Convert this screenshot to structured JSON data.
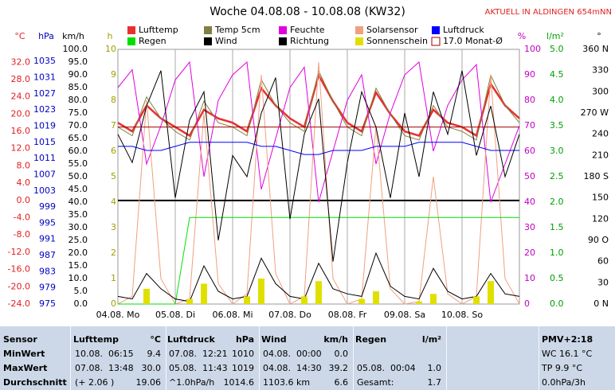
{
  "chart_data": {
    "type": "line",
    "title": "Woche 04.08.08 - 10.08.08 (KW32)",
    "annotation": "AKTUELL IN ALDINGEN 654mNN",
    "x": [
      0,
      6,
      12,
      18,
      24,
      30,
      36,
      42,
      48,
      54,
      60,
      66,
      72,
      78,
      84,
      90,
      96,
      102,
      108,
      114,
      120,
      126,
      132,
      138,
      144,
      150,
      156,
      162,
      168
    ],
    "xlim": [
      0,
      168
    ],
    "xticks": [
      {
        "value": 0,
        "label": "04.08.  Mo"
      },
      {
        "value": 24,
        "label": "05.08.  Di"
      },
      {
        "value": 48,
        "label": "06.08.  Mi"
      },
      {
        "value": 72,
        "label": "07.08.  Do"
      },
      {
        "value": 96,
        "label": "08.08.  Fr"
      },
      {
        "value": 120,
        "label": "09.08.  Sa"
      },
      {
        "value": 144,
        "label": "10.08.  So"
      }
    ],
    "grid": true,
    "axes": [
      {
        "label": "°C",
        "color": "#e02020",
        "ylim": [
          -24,
          35
        ],
        "yticks": [
          {
            "value": 32,
            "label": "32.0"
          },
          {
            "value": 28,
            "label": "28.0"
          },
          {
            "value": 24,
            "label": "24.0"
          },
          {
            "value": 20,
            "label": "20.0"
          },
          {
            "value": 16,
            "label": "16.0"
          },
          {
            "value": 12,
            "label": "12.0"
          },
          {
            "value": 8,
            "label": "8.0"
          },
          {
            "value": 4,
            "label": "4.0"
          },
          {
            "value": 0,
            "label": "0.0"
          },
          {
            "value": -4,
            "label": "-4.0"
          },
          {
            "value": -8,
            "label": "-8.0"
          },
          {
            "value": -12,
            "label": "-12.0"
          },
          {
            "value": -16,
            "label": "-16.0"
          },
          {
            "value": -20,
            "label": "-20.0"
          },
          {
            "value": -24,
            "label": "-24.0"
          }
        ]
      },
      {
        "label": "hPa",
        "color": "#0000c0",
        "ylim": [
          975,
          1038
        ],
        "yticks": [
          1035,
          1031,
          1027,
          1023,
          1019,
          1015,
          1011,
          1007,
          1003,
          999,
          995,
          991,
          987,
          983,
          979,
          975
        ]
      },
      {
        "label": "km/h",
        "color": "#000000",
        "ylim": [
          0,
          100
        ],
        "yticks": [
          {
            "value": 100,
            "label": "100.0"
          },
          {
            "value": 95,
            "label": "95.0"
          },
          {
            "value": 90,
            "label": "90.0"
          },
          {
            "value": 85,
            "label": "85.0"
          },
          {
            "value": 80,
            "label": "80.0"
          },
          {
            "value": 75,
            "label": "75.0"
          },
          {
            "value": 70,
            "label": "70.0"
          },
          {
            "value": 65,
            "label": "65.0"
          },
          {
            "value": 60,
            "label": "60.0"
          },
          {
            "value": 55,
            "label": "55.0"
          },
          {
            "value": 50,
            "label": "50.0"
          },
          {
            "value": 45,
            "label": "45.0"
          },
          {
            "value": 40,
            "label": "40.0"
          },
          {
            "value": 35,
            "label": "35.0"
          },
          {
            "value": 30,
            "label": "30.0"
          },
          {
            "value": 25,
            "label": "25.0"
          },
          {
            "value": 20,
            "label": "20.0"
          },
          {
            "value": 15,
            "label": "15.0"
          },
          {
            "value": 10,
            "label": "10.0"
          },
          {
            "value": 5,
            "label": "5.0"
          },
          {
            "value": 0,
            "label": "0.0"
          }
        ]
      },
      {
        "label": "h",
        "color": "#a0a000",
        "ylim": [
          0,
          10
        ],
        "yticks": [
          10,
          9,
          8,
          7,
          6,
          5,
          4,
          3,
          2,
          1,
          0
        ]
      },
      {
        "label": "%",
        "color": "#c000c0",
        "ylim": [
          0,
          100
        ],
        "yticks": [
          100,
          90,
          80,
          70,
          60,
          50,
          40,
          30,
          20,
          10,
          0
        ]
      },
      {
        "label": "l/m²",
        "color": "#00a000",
        "ylim": [
          0,
          5
        ],
        "yticks": [
          {
            "value": 5,
            "label": "5.0"
          },
          {
            "value": 4.5,
            "label": "4.5"
          },
          {
            "value": 4,
            "label": "4.0"
          },
          {
            "value": 3.5,
            "label": "3.5"
          },
          {
            "value": 3,
            "label": "3.0"
          },
          {
            "value": 2.5,
            "label": "2.5"
          },
          {
            "value": 2,
            "label": "2.0"
          },
          {
            "value": 1.5,
            "label": "1.5"
          },
          {
            "value": 1,
            "label": "1.0"
          },
          {
            "value": 0.5,
            "label": "0.5"
          },
          {
            "value": 0,
            "label": "0.0"
          }
        ]
      },
      {
        "label": "°",
        "color": "#000000",
        "ylim": [
          0,
          360
        ],
        "yticks": [
          {
            "value": 360,
            "label": "360 N"
          },
          330,
          300,
          {
            "value": 270,
            "label": "270 W"
          },
          240,
          210,
          {
            "value": 180,
            "label": "180 S"
          },
          150,
          120,
          {
            "value": 90,
            "label": "90 O"
          },
          60,
          30,
          {
            "value": 0,
            "label": "0 N"
          }
        ]
      }
    ],
    "series": [
      {
        "name": "Lufttemp",
        "color": "#e83030",
        "axis": "°C",
        "values": [
          18,
          16,
          22,
          19,
          17,
          15,
          21,
          19,
          18,
          16,
          26,
          22,
          19,
          17,
          29,
          23,
          18,
          16,
          25,
          20,
          16,
          15,
          21,
          18,
          17,
          15,
          27,
          22,
          19
        ]
      },
      {
        "name": "Temp 5cm",
        "color": "#808040",
        "axis": "°C",
        "values": [
          17,
          15,
          24,
          19,
          16,
          14,
          23,
          18,
          17,
          15,
          28,
          22,
          18,
          16,
          30,
          23,
          17,
          15,
          26,
          20,
          15,
          14,
          22,
          17,
          16,
          14,
          29,
          22,
          18
        ]
      },
      {
        "name": "Feuchte",
        "color": "#e000e0",
        "axis": "%",
        "values": [
          85,
          92,
          55,
          70,
          88,
          95,
          50,
          80,
          90,
          95,
          45,
          65,
          85,
          93,
          40,
          60,
          80,
          90,
          55,
          75,
          90,
          95,
          60,
          78,
          88,
          94,
          40,
          55,
          70
        ]
      },
      {
        "name": "Solarsensor",
        "color": "#f0a080",
        "axis": "%",
        "values": [
          0,
          3,
          80,
          10,
          0,
          2,
          75,
          8,
          0,
          4,
          90,
          12,
          0,
          3,
          95,
          10,
          0,
          2,
          70,
          6,
          0,
          1,
          50,
          4,
          0,
          3,
          90,
          10,
          0
        ]
      },
      {
        "name": "Luftdruck",
        "color": "#0000ff",
        "axis": "hPa",
        "values": [
          1014,
          1014,
          1013,
          1013,
          1014,
          1015,
          1015,
          1015,
          1015,
          1015,
          1014,
          1014,
          1013,
          1012,
          1012,
          1013,
          1013,
          1013,
          1014,
          1014,
          1014,
          1015,
          1015,
          1015,
          1015,
          1014,
          1013,
          1013,
          1013
        ]
      },
      {
        "name": "Regen",
        "color": "#00e000",
        "axis": "l/m²",
        "values": [
          0,
          0,
          0,
          0,
          0,
          1.7,
          1.7,
          1.7,
          1.7,
          1.7,
          1.7,
          1.7,
          1.7,
          1.7,
          1.7,
          1.7,
          1.7,
          1.7,
          1.7,
          1.7,
          1.7,
          1.7,
          1.7,
          1.7,
          1.7,
          1.7,
          1.7,
          1.7,
          1.7
        ]
      },
      {
        "name": "Wind",
        "color": "#000000",
        "axis": "km/h",
        "values": [
          3,
          2,
          12,
          6,
          2,
          1,
          15,
          5,
          2,
          3,
          18,
          8,
          3,
          2,
          16,
          6,
          4,
          3,
          20,
          7,
          3,
          2,
          14,
          5,
          2,
          3,
          12,
          4,
          3
        ]
      },
      {
        "name": "Richtung",
        "color": "#000000",
        "axis": "°",
        "values": [
          240,
          200,
          280,
          330,
          150,
          260,
          300,
          90,
          210,
          180,
          270,
          320,
          120,
          240,
          290,
          60,
          200,
          300,
          250,
          150,
          270,
          180,
          300,
          240,
          330,
          210,
          280,
          180,
          240
        ]
      },
      {
        "name": "Sonnenschein",
        "color": "#e0e000",
        "axis": "h",
        "type": "bar",
        "values": [
          0,
          0,
          0.6,
          0,
          0,
          0.2,
          0.8,
          0,
          0,
          0.3,
          1,
          0,
          0,
          0.3,
          0.9,
          0,
          0,
          0.2,
          0.5,
          0,
          0,
          0.1,
          0.4,
          0,
          0,
          0.3,
          0.9,
          0,
          0
        ]
      }
    ],
    "monthly_mean": {
      "name": "Monat-Ø",
      "value": 17,
      "value_label": "17.0",
      "color": "#a00000",
      "axis": "°C"
    }
  },
  "table": {
    "header": [
      {
        "name": "Sensor"
      },
      {
        "name": "Lufttemp",
        "unit": "°C"
      },
      {
        "name": "Luftdruck",
        "unit": "hPa"
      },
      {
        "name": "Wind",
        "unit": "km/h"
      },
      {
        "name": "Regen",
        "unit": "l/m²"
      },
      {
        "name": "PMV+2:18"
      }
    ],
    "rows": [
      {
        "label": "MinWert",
        "cells": [
          [
            "10.08.  06:15",
            "9.4"
          ],
          [
            "07.08.  12:21",
            "1010"
          ],
          [
            "04.08.  00:00",
            "0.0"
          ],
          null,
          "WC 16.1 °C"
        ]
      },
      {
        "label": "MaxWert",
        "cells": [
          [
            "07.08.  13:48",
            "30.0"
          ],
          [
            "05.08.  11:43",
            "1019"
          ],
          [
            "04.08.  14:30",
            "39.2"
          ],
          [
            "05.08.  00:04",
            "1.0"
          ],
          "TP 9.9 °C"
        ]
      },
      {
        "label": "Durchschnitt",
        "cells": [
          [
            "(+ 2.06 )",
            "19.06"
          ],
          [
            "^1.0hPa/h",
            "1014.6"
          ],
          [
            "1103.6 km",
            "6.6"
          ],
          [
            "Gesamt:",
            "1.7"
          ],
          "0.0hPa/3h"
        ]
      }
    ]
  }
}
